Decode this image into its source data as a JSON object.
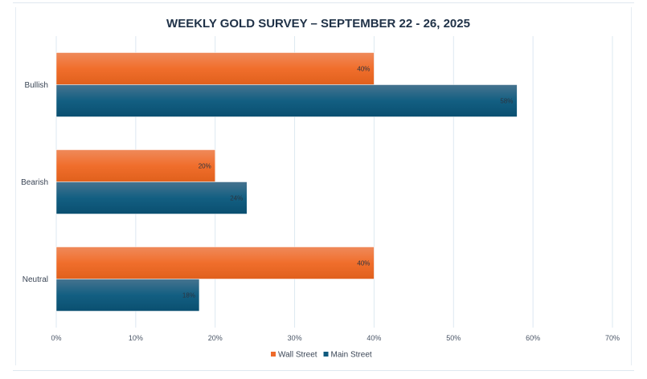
{
  "chart_data": {
    "type": "bar",
    "orientation": "horizontal",
    "title": "WEEKLY GOLD SURVEY – SEPTEMBER 22 - 26, 2025",
    "categories": [
      "Bullish",
      "Bearish",
      "Neutral"
    ],
    "series": [
      {
        "name": "Wall Street",
        "values": [
          40,
          20,
          40
        ],
        "color": "#ee6a2a",
        "labels": [
          "40%",
          "20%",
          "40%"
        ]
      },
      {
        "name": "Main Street",
        "values": [
          58,
          24,
          18
        ],
        "color": "#0f5a7e",
        "labels": [
          "58%",
          "24%",
          "18%"
        ]
      }
    ],
    "xlim": [
      0,
      70
    ],
    "xticks": [
      0,
      10,
      20,
      30,
      40,
      50,
      60,
      70
    ],
    "xtick_labels": [
      "0%",
      "10%",
      "20%",
      "30%",
      "40%",
      "50%",
      "60%",
      "70%"
    ],
    "xlabel": "",
    "ylabel": "",
    "grid": true,
    "legend": "bottom"
  }
}
